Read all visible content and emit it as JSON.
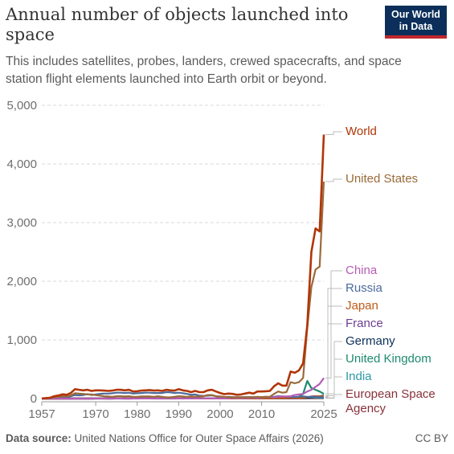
{
  "header": {
    "title": "Annual number of objects launched into space",
    "subtitle": "This includes satellites, probes, landers, crewed spacecrafts, and space station flight elements launched into Earth orbit or beyond.",
    "logo_line1": "Our World",
    "logo_line2": "in Data"
  },
  "footer": {
    "source_label": "Data source:",
    "source_text": "United Nations Office for Outer Space Affairs (2026)",
    "license": "CC BY"
  },
  "chart_data": {
    "type": "line",
    "xlim": [
      1957,
      2025
    ],
    "ylim": [
      0,
      5000
    ],
    "x_ticks": [
      "1957",
      "1970",
      "1980",
      "1990",
      "2000",
      "2010",
      "2025"
    ],
    "x_tick_values": [
      1957,
      1970,
      1980,
      1990,
      2000,
      2010,
      2025
    ],
    "y_ticks": [
      "0",
      "1,000",
      "2,000",
      "3,000",
      "4,000",
      "5,000"
    ],
    "y_tick_values": [
      0,
      1000,
      2000,
      3000,
      4000,
      5000
    ],
    "grid": "horizontal-dashed",
    "legend": "right, labels at line ends",
    "x": [
      1957,
      1958,
      1959,
      1960,
      1961,
      1962,
      1963,
      1964,
      1965,
      1966,
      1967,
      1968,
      1969,
      1970,
      1971,
      1972,
      1973,
      1974,
      1975,
      1976,
      1977,
      1978,
      1979,
      1980,
      1981,
      1982,
      1983,
      1984,
      1985,
      1986,
      1987,
      1988,
      1989,
      1990,
      1991,
      1992,
      1993,
      1994,
      1995,
      1996,
      1997,
      1998,
      1999,
      2000,
      2001,
      2002,
      2003,
      2004,
      2005,
      2006,
      2007,
      2008,
      2009,
      2010,
      2011,
      2012,
      2013,
      2014,
      2015,
      2016,
      2017,
      2018,
      2019,
      2020,
      2021,
      2022,
      2023,
      2024,
      2025
    ],
    "series": [
      {
        "name": "World",
        "color": "#b13507",
        "values": [
          2,
          8,
          14,
          40,
          52,
          72,
          65,
          95,
          160,
          150,
          140,
          150,
          130,
          140,
          140,
          135,
          130,
          135,
          150,
          150,
          140,
          150,
          120,
          125,
          135,
          140,
          145,
          135,
          140,
          130,
          150,
          140,
          135,
          160,
          140,
          130,
          110,
          130,
          110,
          110,
          140,
          150,
          120,
          95,
          75,
          85,
          80,
          65,
          70,
          85,
          100,
          85,
          120,
          120,
          125,
          130,
          210,
          260,
          220,
          220,
          460,
          440,
          480,
          600,
          1250,
          2500,
          2900,
          2850,
          4500
        ]
      },
      {
        "name": "United States",
        "color": "#9a6b3a",
        "values": [
          1,
          5,
          10,
          20,
          30,
          40,
          35,
          55,
          90,
          85,
          80,
          70,
          70,
          60,
          50,
          40,
          35,
          30,
          40,
          40,
          35,
          40,
          30,
          30,
          35,
          35,
          35,
          30,
          40,
          30,
          20,
          20,
          30,
          40,
          35,
          30,
          35,
          30,
          35,
          40,
          60,
          60,
          40,
          35,
          30,
          20,
          20,
          25,
          20,
          20,
          25,
          20,
          30,
          25,
          30,
          30,
          80,
          120,
          100,
          110,
          280,
          260,
          280,
          350,
          1200,
          1900,
          2200,
          2250,
          3700
        ]
      },
      {
        "name": "China",
        "color": "#b55cb5",
        "values": [
          0,
          0,
          0,
          0,
          0,
          0,
          0,
          0,
          0,
          0,
          0,
          0,
          0,
          1,
          1,
          0,
          0,
          0,
          3,
          2,
          0,
          2,
          0,
          0,
          3,
          1,
          1,
          3,
          1,
          2,
          2,
          4,
          0,
          5,
          0,
          3,
          1,
          5,
          2,
          3,
          6,
          6,
          2,
          5,
          2,
          4,
          10,
          10,
          5,
          12,
          12,
          15,
          10,
          20,
          25,
          25,
          20,
          30,
          35,
          35,
          40,
          60,
          70,
          80,
          120,
          150,
          200,
          250,
          350
        ]
      },
      {
        "name": "Russia",
        "color": "#4c6a9c",
        "values": [
          1,
          1,
          3,
          15,
          20,
          30,
          25,
          40,
          60,
          55,
          60,
          75,
          60,
          70,
          80,
          85,
          85,
          90,
          100,
          100,
          95,
          100,
          85,
          90,
          95,
          100,
          100,
          95,
          95,
          95,
          110,
          105,
          95,
          100,
          90,
          80,
          65,
          70,
          50,
          45,
          50,
          55,
          40,
          30,
          25,
          30,
          25,
          20,
          25,
          25,
          25,
          25,
          25,
          25,
          30,
          25,
          30,
          40,
          35,
          30,
          30,
          25,
          30,
          35,
          30,
          25,
          30,
          20,
          25
        ]
      },
      {
        "name": "Japan",
        "color": "#be5915",
        "values": [
          0,
          0,
          0,
          0,
          0,
          0,
          0,
          0,
          0,
          0,
          0,
          0,
          0,
          1,
          2,
          1,
          0,
          2,
          3,
          2,
          3,
          4,
          2,
          4,
          3,
          3,
          3,
          3,
          2,
          2,
          3,
          3,
          3,
          5,
          2,
          2,
          2,
          2,
          3,
          3,
          3,
          3,
          2,
          2,
          2,
          2,
          5,
          2,
          3,
          5,
          4,
          3,
          6,
          5,
          4,
          4,
          5,
          8,
          7,
          8,
          10,
          15,
          10,
          12,
          25,
          30,
          35,
          40,
          40
        ]
      },
      {
        "name": "France",
        "color": "#6d3e91",
        "values": [
          0,
          0,
          0,
          0,
          0,
          0,
          0,
          0,
          1,
          1,
          2,
          0,
          0,
          1,
          2,
          1,
          0,
          1,
          2,
          1,
          0,
          0,
          1,
          1,
          2,
          2,
          2,
          1,
          3,
          2,
          2,
          2,
          2,
          3,
          2,
          2,
          2,
          2,
          2,
          2,
          3,
          2,
          2,
          3,
          2,
          2,
          2,
          3,
          2,
          2,
          2,
          3,
          3,
          3,
          3,
          3,
          4,
          5,
          5,
          5,
          8,
          10,
          12,
          15,
          25,
          35,
          40,
          30,
          20
        ]
      },
      {
        "name": "Germany",
        "color": "#0b2f5a",
        "values": [
          0,
          0,
          0,
          0,
          0,
          0,
          0,
          0,
          0,
          0,
          0,
          0,
          1,
          1,
          1,
          1,
          1,
          1,
          1,
          1,
          1,
          1,
          1,
          1,
          1,
          1,
          1,
          1,
          1,
          1,
          1,
          1,
          1,
          1,
          1,
          1,
          1,
          1,
          1,
          1,
          1,
          1,
          1,
          2,
          2,
          2,
          2,
          2,
          2,
          2,
          3,
          3,
          3,
          3,
          3,
          3,
          4,
          4,
          4,
          5,
          5,
          10,
          8,
          10,
          15,
          20,
          30,
          40,
          50
        ]
      },
      {
        "name": "United Kingdom",
        "color": "#1d8a6e",
        "values": [
          0,
          0,
          0,
          0,
          0,
          2,
          3,
          4,
          5,
          4,
          6,
          5,
          4,
          3,
          3,
          2,
          2,
          2,
          1,
          1,
          1,
          1,
          1,
          1,
          1,
          1,
          1,
          1,
          1,
          1,
          1,
          1,
          2,
          2,
          2,
          2,
          1,
          1,
          1,
          1,
          2,
          2,
          2,
          2,
          2,
          2,
          2,
          2,
          2,
          2,
          2,
          2,
          3,
          3,
          3,
          3,
          5,
          10,
          8,
          8,
          10,
          25,
          30,
          80,
          300,
          180,
          150,
          120,
          80
        ]
      },
      {
        "name": "India",
        "color": "#2c9aa6",
        "values": [
          0,
          0,
          0,
          0,
          0,
          0,
          0,
          0,
          0,
          0,
          0,
          0,
          0,
          0,
          0,
          0,
          0,
          0,
          1,
          0,
          0,
          0,
          1,
          1,
          1,
          2,
          1,
          0,
          0,
          0,
          0,
          1,
          0,
          1,
          1,
          2,
          1,
          1,
          1,
          1,
          2,
          2,
          2,
          1,
          2,
          2,
          2,
          1,
          2,
          2,
          2,
          3,
          3,
          2,
          3,
          3,
          4,
          5,
          5,
          5,
          10,
          12,
          10,
          8,
          12,
          15,
          15,
          10,
          12
        ]
      },
      {
        "name": "European Space Agency",
        "color": "#883039",
        "values": [
          0,
          0,
          0,
          0,
          0,
          0,
          0,
          0,
          0,
          0,
          0,
          0,
          0,
          0,
          0,
          0,
          0,
          0,
          1,
          1,
          1,
          1,
          1,
          1,
          1,
          1,
          1,
          1,
          1,
          1,
          1,
          1,
          1,
          1,
          1,
          1,
          1,
          1,
          1,
          1,
          1,
          1,
          1,
          1,
          1,
          1,
          2,
          1,
          1,
          1,
          2,
          2,
          2,
          2,
          3,
          2,
          2,
          3,
          3,
          3,
          3,
          3,
          3,
          3,
          3,
          4,
          4,
          5,
          5
        ]
      }
    ],
    "label_positions": [
      "World",
      "United States",
      "China",
      "Russia",
      "Japan",
      "France",
      "Germany",
      "United Kingdom",
      "India",
      "European Space Agency"
    ]
  }
}
